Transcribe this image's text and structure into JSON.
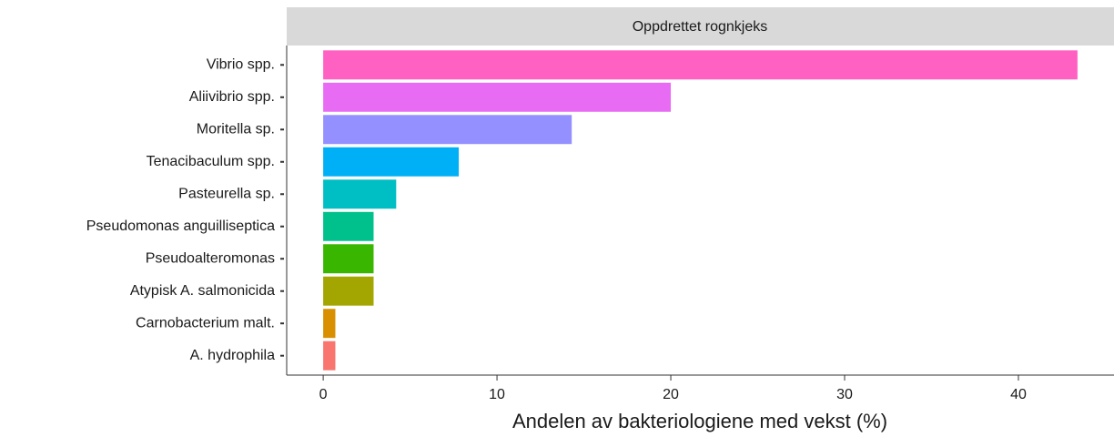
{
  "chart_data": {
    "type": "bar",
    "orientation": "horizontal",
    "strip_label": "Oppdrettet rognkjeks",
    "x_label": "Andelen av bakteriologiene med vekst (%)",
    "categories": [
      "Vibrio spp.",
      "Aliivibrio spp.",
      "Moritella sp.",
      "Tenacibaculum spp.",
      "Pasteurella sp.",
      "Pseudomonas anguilliseptica",
      "Pseudoalteromonas",
      "Atypisk A. salmonicida",
      "Carnobacterium malt.",
      "A. hydrophila"
    ],
    "values": [
      43.4,
      20.0,
      14.3,
      7.8,
      4.2,
      2.9,
      2.9,
      2.9,
      0.7,
      0.7
    ],
    "colors": [
      "#ff61c3",
      "#e76bf3",
      "#9590ff",
      "#00b0f6",
      "#00bfc4",
      "#00c08b",
      "#39b600",
      "#a3a500",
      "#d89000",
      "#f8766d"
    ],
    "xlim": [
      -2.1,
      45.5
    ],
    "xticks": [
      0,
      10,
      20,
      30,
      40
    ],
    "grid": false
  }
}
